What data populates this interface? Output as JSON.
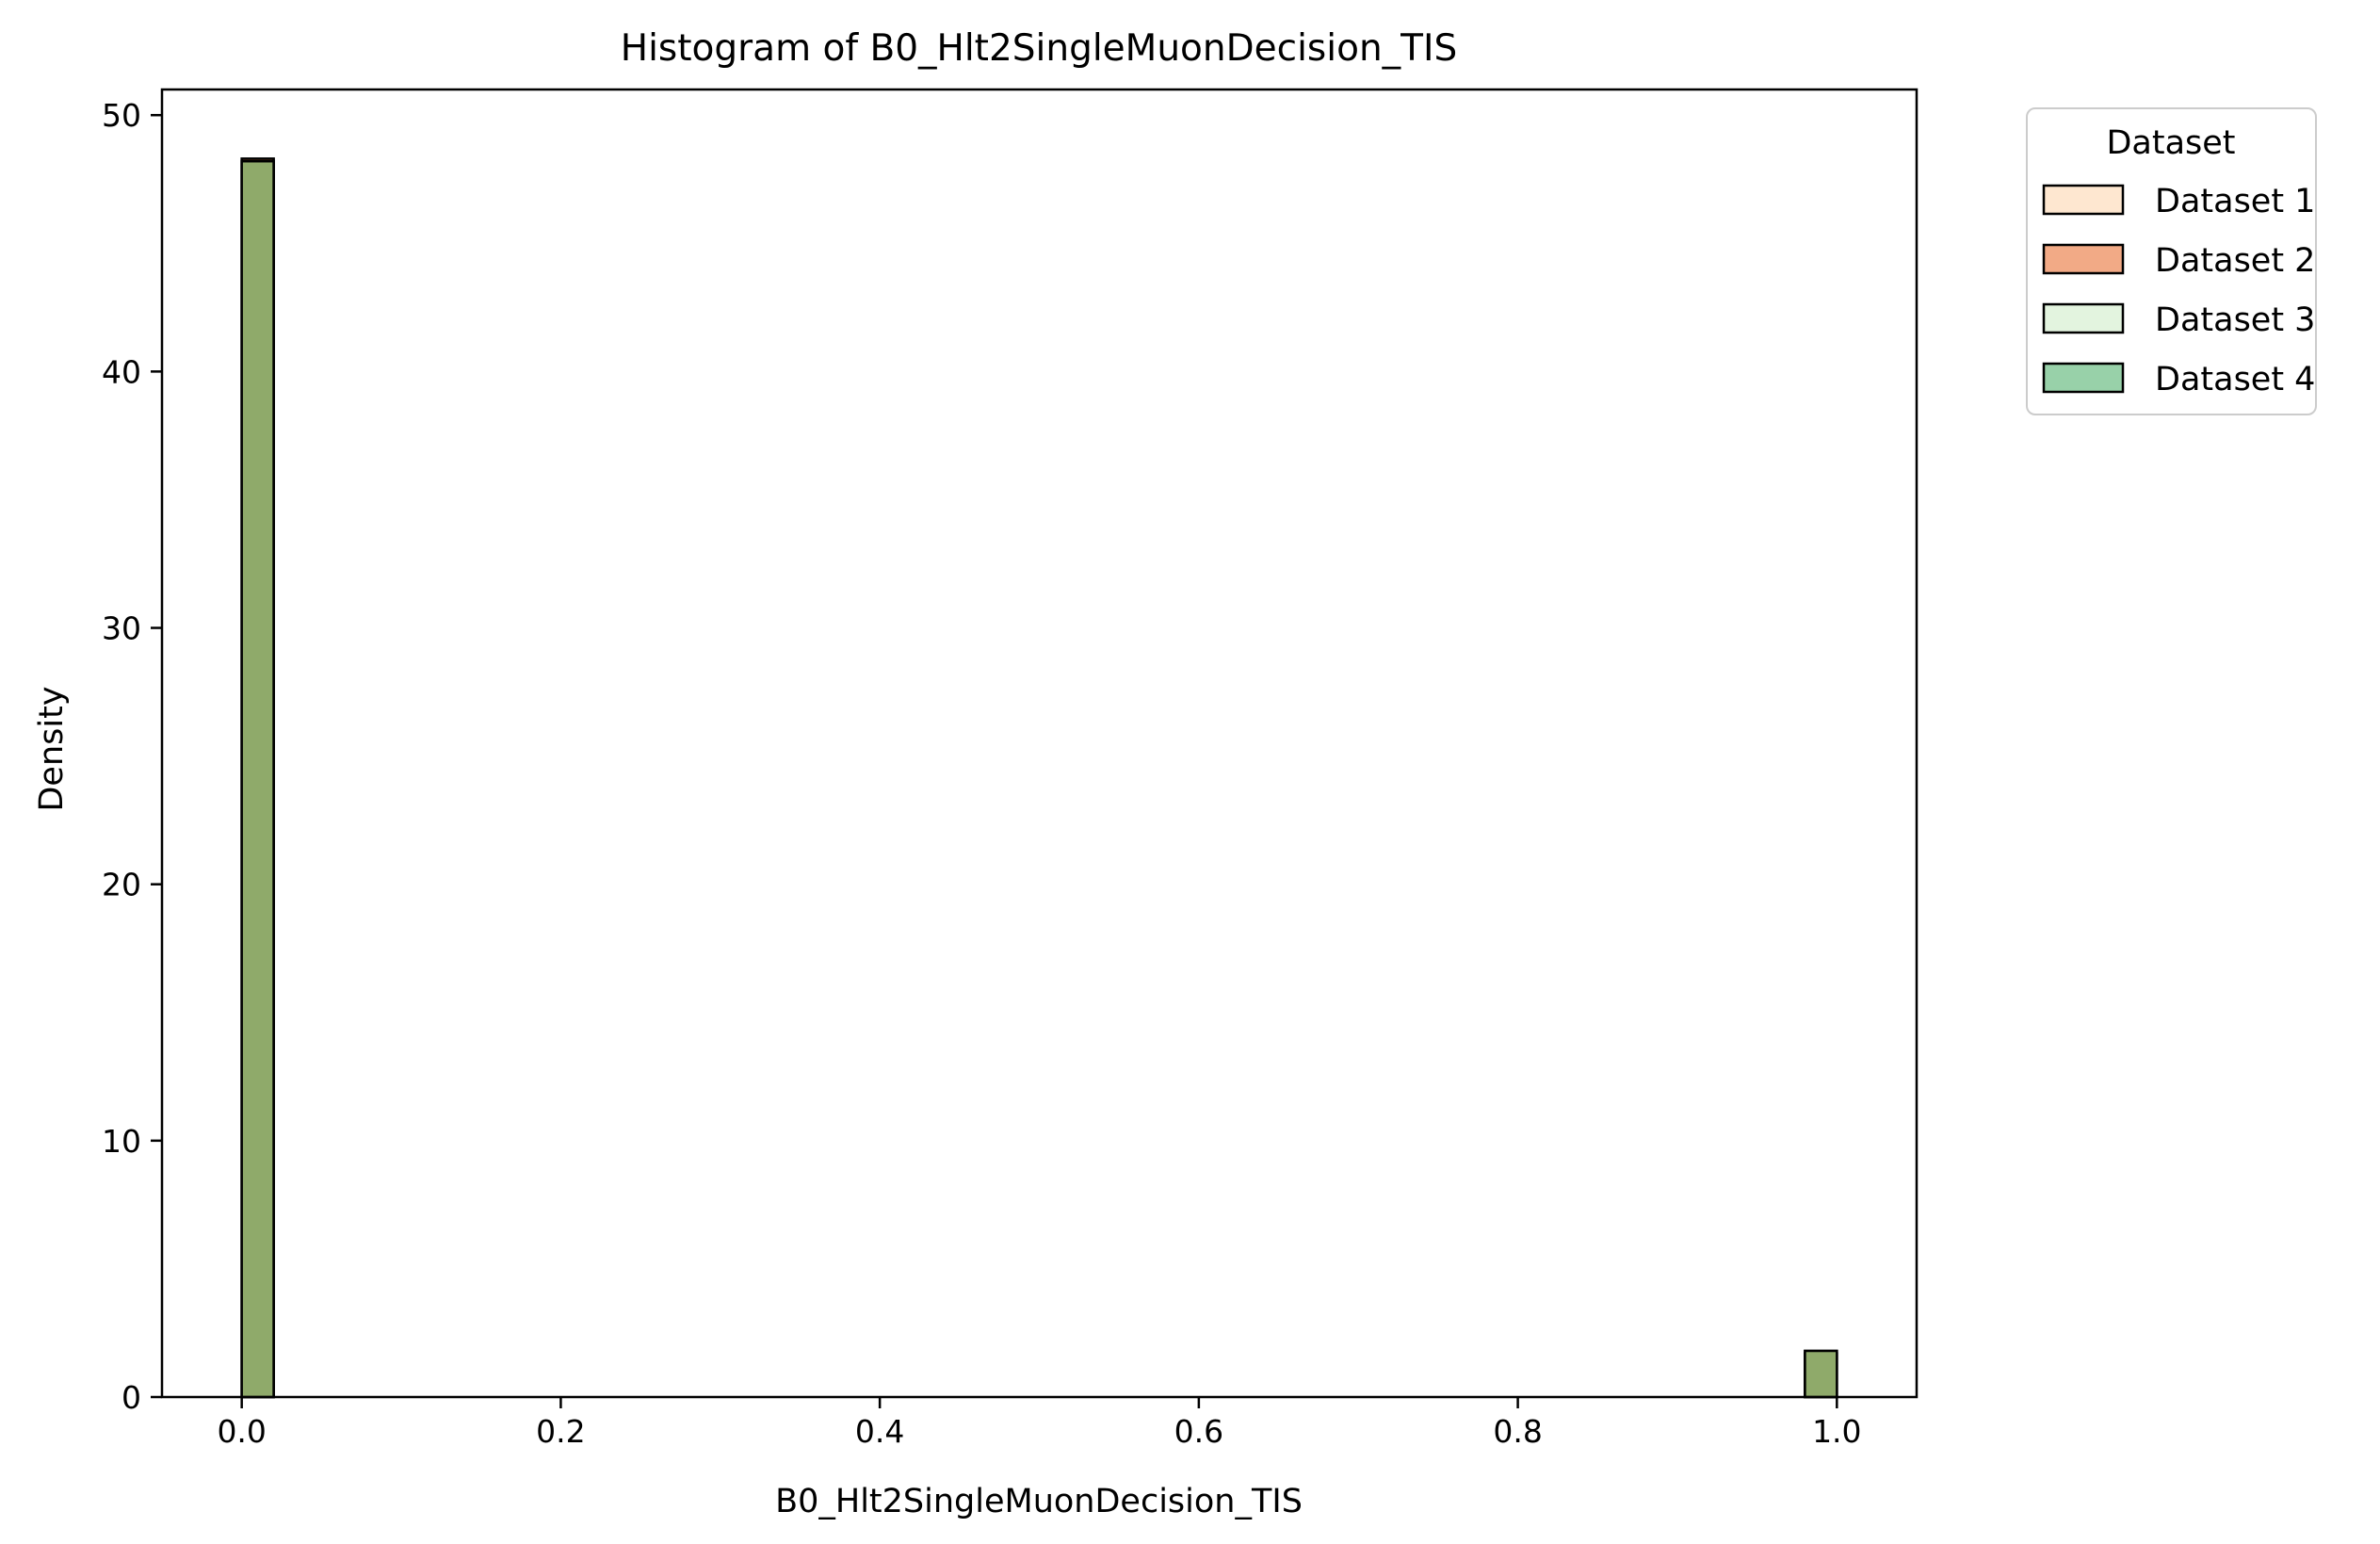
{
  "chart_data": {
    "type": "histogram",
    "title": "Histogram of B0_Hlt2SingleMuonDecision_TIS",
    "xlabel": "B0_Hlt2SingleMuonDecision_TIS",
    "ylabel": "Density",
    "xlim": [
      -0.05,
      1.05
    ],
    "ylim": [
      0,
      51
    ],
    "xticks": [
      0.0,
      0.2,
      0.4,
      0.6,
      0.8,
      1.0
    ],
    "xtick_labels": [
      "0.0",
      "0.2",
      "0.4",
      "0.6",
      "0.8",
      "1.0"
    ],
    "yticks": [
      0,
      10,
      20,
      30,
      40,
      50
    ],
    "ytick_labels": [
      "0",
      "10",
      "20",
      "30",
      "40",
      "50"
    ],
    "grid": false,
    "legend": {
      "title": "Dataset",
      "placement": "outside upper right"
    },
    "bins": [
      {
        "x0": 0.0,
        "x1": 0.02
      },
      {
        "x0": 0.98,
        "x1": 1.0
      }
    ],
    "series": [
      {
        "name": "Dataset 1",
        "color": "#fdd0a2",
        "values": [
          48.3,
          1.7
        ]
      },
      {
        "name": "Dataset 2",
        "color": "#e6550d",
        "values": [
          48.3,
          1.7
        ]
      },
      {
        "name": "Dataset 3",
        "color": "#c7e9c0",
        "values": [
          48.2,
          1.8
        ]
      },
      {
        "name": "Dataset 4",
        "color": "#31a354",
        "values": [
          48.2,
          1.8
        ]
      }
    ],
    "visible_bar_color": "#8faa6a"
  }
}
